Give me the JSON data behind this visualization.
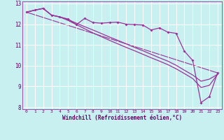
{
  "xlabel": "Windchill (Refroidissement éolien,°C)",
  "bg_color": "#c8f0f0",
  "line_color": "#993399",
  "grid_color": "#aadddd",
  "spine_color": "#993399",
  "tick_color": "#660066",
  "xlim": [
    -0.5,
    23.5
  ],
  "ylim": [
    7.9,
    13.1
  ],
  "yticks": [
    8,
    9,
    10,
    11,
    12,
    13
  ],
  "xticks": [
    0,
    1,
    2,
    3,
    4,
    5,
    6,
    7,
    8,
    9,
    10,
    11,
    12,
    13,
    14,
    15,
    16,
    17,
    18,
    19,
    20,
    21,
    22,
    23
  ],
  "line1_x": [
    0,
    1,
    2,
    3,
    4,
    5,
    6,
    7,
    8,
    9,
    10,
    11,
    12,
    13,
    14,
    15,
    16,
    17,
    18,
    19,
    20,
    21,
    22,
    23
  ],
  "line1_y": [
    12.58,
    12.68,
    12.76,
    12.44,
    12.35,
    12.25,
    11.98,
    12.28,
    12.08,
    12.05,
    12.08,
    12.1,
    12.0,
    11.98,
    11.96,
    11.72,
    11.82,
    11.62,
    11.56,
    10.7,
    10.25,
    8.22,
    8.5,
    9.65
  ],
  "line2_x": [
    0,
    1,
    2,
    3,
    4,
    5,
    6,
    7,
    8,
    9,
    10,
    11,
    12,
    13,
    14,
    15,
    16,
    17,
    18,
    19,
    20,
    21,
    22,
    23
  ],
  "line2_y": [
    12.58,
    12.68,
    12.76,
    12.44,
    12.35,
    12.18,
    11.98,
    11.78,
    11.58,
    11.4,
    11.22,
    11.05,
    10.88,
    10.72,
    10.55,
    10.38,
    10.22,
    10.05,
    9.85,
    9.62,
    9.38,
    8.95,
    9.05,
    9.58
  ],
  "line3_x": [
    0,
    1,
    2,
    3,
    4,
    5,
    6,
    7,
    8,
    9,
    10,
    11,
    12,
    13,
    14,
    15,
    16,
    17,
    18,
    19,
    20,
    21,
    22,
    23
  ],
  "line3_y": [
    12.58,
    12.68,
    12.76,
    12.44,
    12.35,
    12.22,
    12.05,
    11.88,
    11.72,
    11.55,
    11.38,
    11.22,
    11.05,
    10.88,
    10.72,
    10.55,
    10.38,
    10.22,
    10.02,
    9.78,
    9.55,
    9.25,
    9.35,
    9.58
  ],
  "line4_x": [
    0,
    23
  ],
  "line4_y": [
    12.58,
    9.65
  ]
}
